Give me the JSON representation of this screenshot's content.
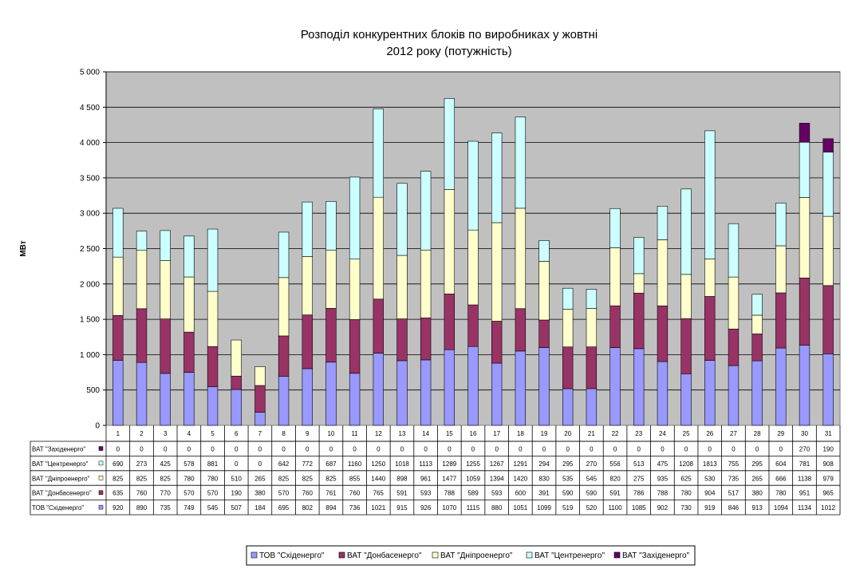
{
  "chart_data": {
    "type": "bar",
    "stacked": true,
    "title_lines": [
      "Розподіл конкурентних блоків по виробниках у жовтні",
      "2012 року (потужність)"
    ],
    "xlabel": "",
    "ylabel": "МВт",
    "ylim": [
      0,
      5000
    ],
    "yticks": [
      "0",
      "500",
      "1 000",
      "1 500",
      "2 000",
      "2 500",
      "3 000",
      "3 500",
      "4 000",
      "4 500",
      "5 000"
    ],
    "ytick_values": [
      0,
      500,
      1000,
      1500,
      2000,
      2500,
      3000,
      3500,
      4000,
      4500,
      5000
    ],
    "grid": true,
    "legend_position": "bottom",
    "categories": [
      "1",
      "2",
      "3",
      "4",
      "5",
      "6",
      "7",
      "8",
      "9",
      "10",
      "11",
      "12",
      "13",
      "14",
      "15",
      "16",
      "17",
      "18",
      "19",
      "20",
      "21",
      "22",
      "23",
      "24",
      "25",
      "26",
      "27",
      "28",
      "29",
      "30",
      "31"
    ],
    "series": [
      {
        "name": "ТОВ \"Східенерго\"",
        "color": "#9999ff",
        "values": [
          920,
          890,
          735,
          749,
          545,
          507,
          184,
          695,
          802,
          894,
          736,
          1021,
          915,
          926,
          1070,
          1115,
          880,
          1051,
          1099,
          519,
          520,
          1100,
          1085,
          902,
          730,
          919,
          846,
          913,
          1094,
          1134,
          1012
        ]
      },
      {
        "name": "ВАТ \"Донбасенерго\"",
        "color": "#993366",
        "values": [
          635,
          760,
          770,
          570,
          570,
          190,
          380,
          570,
          760,
          761,
          760,
          765,
          591,
          593,
          788,
          589,
          593,
          600,
          391,
          590,
          590,
          591,
          786,
          788,
          780,
          904,
          517,
          380,
          780,
          951,
          965
        ]
      },
      {
        "name": "ВАТ \"Дніпроенерго\"",
        "color": "#ffffcc",
        "values": [
          825,
          825,
          825,
          780,
          780,
          510,
          265,
          825,
          825,
          825,
          855,
          1440,
          898,
          961,
          1477,
          1059,
          1394,
          1420,
          830,
          535,
          545,
          820,
          275,
          935,
          625,
          530,
          735,
          265,
          666,
          1138,
          979
        ]
      },
      {
        "name": "ВАТ \"Центренерго\"",
        "color": "#ccffff",
        "values": [
          690,
          273,
          425,
          578,
          881,
          0,
          0,
          642,
          772,
          687,
          1160,
          1250,
          1018,
          1113,
          1289,
          1255,
          1267,
          1291,
          294,
          295,
          270,
          556,
          513,
          475,
          1208,
          1813,
          755,
          295,
          604,
          781,
          908
        ]
      },
      {
        "name": "ВАТ \"Західенерго\"",
        "color": "#660066",
        "values": [
          0,
          0,
          0,
          0,
          0,
          0,
          0,
          0,
          0,
          0,
          0,
          0,
          0,
          0,
          0,
          0,
          0,
          0,
          0,
          0,
          0,
          0,
          0,
          0,
          0,
          0,
          0,
          0,
          0,
          270,
          190
        ]
      }
    ],
    "table_rows": [
      {
        "label": "ВАТ \"Західенерго\"",
        "series_index": 4
      },
      {
        "label": "ВАТ \"Центренерго\"",
        "series_index": 3
      },
      {
        "label": "ВАТ \"Дніпроенерго\"",
        "series_index": 2
      },
      {
        "label": "ВАТ \"Донбасенерго\"",
        "series_index": 1
      },
      {
        "label": "ТОВ \"Східенерго\"",
        "series_index": 0
      }
    ],
    "plot_background": "#c0c0c0"
  }
}
